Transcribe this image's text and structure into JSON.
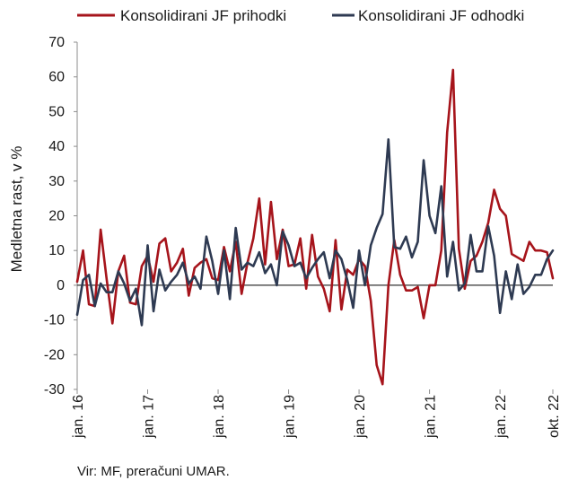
{
  "chart_data": {
    "type": "line",
    "ylabel": "Medletna rast, v %",
    "ylim": [
      -30,
      70
    ],
    "yticks": [
      -30,
      -20,
      -10,
      0,
      10,
      20,
      30,
      40,
      50,
      60,
      70
    ],
    "x_ticks": [
      {
        "label": "jan. 16",
        "index": 0
      },
      {
        "label": "jan. 17",
        "index": 12
      },
      {
        "label": "jan. 18",
        "index": 24
      },
      {
        "label": "jan. 19",
        "index": 36
      },
      {
        "label": "jan. 20",
        "index": 48
      },
      {
        "label": "jan. 21",
        "index": 60
      },
      {
        "label": "jan. 22",
        "index": 72
      },
      {
        "label": "okt. 22",
        "index": 81
      }
    ],
    "legend_position": "top",
    "series": [
      {
        "name": "Konsolidirani JF prihodki",
        "color": "#a6141b",
        "values": [
          1,
          10,
          -5.5,
          -6,
          16,
          2,
          -11,
          4,
          8.5,
          -5,
          -5.5,
          5.5,
          8.5,
          1,
          12,
          13.5,
          4,
          6.5,
          10.5,
          -3,
          5,
          6.5,
          7.5,
          2,
          1.5,
          11,
          4,
          12.5,
          -2.5,
          6.5,
          13.5,
          25,
          6,
          24,
          7.5,
          16,
          5.5,
          6,
          13.5,
          -1,
          14.5,
          2.5,
          -1,
          -7.5,
          13,
          -7,
          4.5,
          3,
          7.5,
          5.5,
          -4.5,
          -23,
          -28.5,
          0,
          13,
          3,
          -1.5,
          -1.5,
          -0.5,
          -9.5,
          0,
          0,
          10,
          44,
          62,
          10.5,
          -1,
          7,
          8.5,
          12.5,
          18,
          27.5,
          22,
          20,
          9,
          8,
          7,
          12.5,
          10,
          10,
          9.5,
          2
        ]
      },
      {
        "name": "Konsolidirani JF odhodki",
        "color": "#2e3a52",
        "values": [
          -8.5,
          1.5,
          3,
          -6,
          0.5,
          -2,
          -2,
          4,
          0.5,
          -4.5,
          -1,
          -11.5,
          11.5,
          -7.5,
          4.5,
          -1.5,
          1,
          3,
          6.5,
          0.5,
          2.5,
          -1,
          14,
          7,
          -2.5,
          10,
          -4,
          16.5,
          4.5,
          6.5,
          5.5,
          9.5,
          3.5,
          6,
          0,
          15.5,
          11.5,
          5.5,
          6.5,
          2,
          5,
          7.5,
          9.5,
          2,
          10,
          7.5,
          1.5,
          -6.5,
          10,
          0,
          11.5,
          16.5,
          20.5,
          42,
          11,
          10.5,
          14,
          8,
          12.5,
          36,
          20,
          15,
          28.5,
          2.5,
          12.5,
          -1.5,
          0.5,
          14.5,
          4,
          4,
          17,
          8.5,
          -8,
          4,
          -4,
          6,
          -2.5,
          -0.5,
          3,
          3,
          7.5,
          10
        ]
      }
    ]
  },
  "source_text": "Vir: MF, preračuni UMAR."
}
